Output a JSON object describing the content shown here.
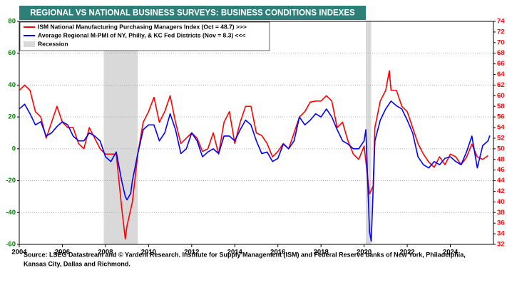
{
  "chart_data": {
    "type": "line",
    "title": "REGIONAL VS NATIONAL BUSINESS SURVEYS: BUSINESS CONDITIONS INDEXES",
    "xlim": [
      2004,
      2026
    ],
    "xticks": [
      2004,
      2006,
      2008,
      2010,
      2012,
      2014,
      2016,
      2018,
      2020,
      2022,
      2024
    ],
    "ylim": [
      -60,
      80
    ],
    "yticks": [
      -60,
      -40,
      -20,
      0,
      20,
      40,
      60,
      80
    ],
    "y2lim": [
      32,
      74
    ],
    "y2ticks": [
      32,
      34,
      36,
      38,
      40,
      42,
      44,
      46,
      48,
      50,
      52,
      54,
      56,
      58,
      60,
      62,
      64,
      66,
      68,
      70,
      72,
      74
    ],
    "grid": true,
    "legend": "top-left",
    "series": [
      {
        "name": "ISM National Manufacturing Purchasing Managers Index (Oct = 48.7) >>>",
        "color": "#ff0000",
        "axis": "y2",
        "x": [
          2004,
          2004.25,
          2004.5,
          2004.75,
          2005,
          2005.25,
          2005.5,
          2005.75,
          2006,
          2006.25,
          2006.5,
          2006.75,
          2007,
          2007.25,
          2007.5,
          2007.75,
          2008,
          2008.25,
          2008.5,
          2008.75,
          2008.92,
          2009,
          2009.25,
          2009.5,
          2009.75,
          2010,
          2010.25,
          2010.5,
          2010.75,
          2011,
          2011.25,
          2011.5,
          2011.75,
          2012,
          2012.25,
          2012.5,
          2012.75,
          2013,
          2013.25,
          2013.5,
          2013.75,
          2014,
          2014.25,
          2014.5,
          2014.75,
          2015,
          2015.25,
          2015.5,
          2015.75,
          2016,
          2016.25,
          2016.5,
          2016.75,
          2017,
          2017.25,
          2017.5,
          2017.75,
          2018,
          2018.25,
          2018.5,
          2018.75,
          2019,
          2019.25,
          2019.5,
          2019.75,
          2020,
          2020.25,
          2020.42,
          2020.5,
          2020.75,
          2021,
          2021.17,
          2021.25,
          2021.5,
          2021.75,
          2022,
          2022.25,
          2022.5,
          2022.75,
          2023,
          2023.25,
          2023.5,
          2023.75,
          2024,
          2024.25,
          2024.5,
          2024.75,
          2025,
          2025.25,
          2025.5,
          2025.75
        ],
        "values": [
          61,
          62,
          61,
          57,
          56,
          52,
          55,
          58,
          55,
          54,
          54,
          51,
          50,
          54,
          52,
          50,
          49,
          49,
          49,
          39,
          33,
          35.5,
          40,
          49,
          55,
          57,
          59.7,
          55,
          57,
          60,
          55,
          51,
          52,
          53,
          52,
          49.5,
          50,
          53,
          49,
          55,
          57,
          51,
          55,
          58,
          58,
          53,
          52.5,
          51,
          48.5,
          49.5,
          51,
          50,
          53,
          56,
          57,
          58.8,
          59,
          59,
          60,
          59,
          54,
          55,
          51.5,
          49,
          48,
          50.5,
          41.5,
          43,
          54,
          59,
          61,
          64.7,
          61,
          61,
          58,
          57,
          54,
          51,
          49,
          47.5,
          46.5,
          48.5,
          47,
          49,
          48.5,
          47,
          48.4,
          50.9,
          48.5,
          48,
          48.7
        ]
      },
      {
        "name": "Average Regional M-PMI of NY, Philly, & KC Fed Districts (Nov = 8.3) <<<",
        "color": "#0000ff",
        "axis": "y",
        "x": [
          2004,
          2004.25,
          2004.5,
          2004.75,
          2005,
          2005.25,
          2005.5,
          2005.75,
          2006,
          2006.25,
          2006.5,
          2006.75,
          2007,
          2007.25,
          2007.5,
          2007.75,
          2008,
          2008.25,
          2008.5,
          2008.75,
          2008.92,
          2009,
          2009.17,
          2009.25,
          2009.5,
          2009.75,
          2010,
          2010.25,
          2010.5,
          2010.75,
          2011,
          2011.25,
          2011.5,
          2011.75,
          2012,
          2012.25,
          2012.5,
          2012.75,
          2013,
          2013.25,
          2013.5,
          2013.75,
          2014,
          2014.25,
          2014.5,
          2014.75,
          2015,
          2015.25,
          2015.5,
          2015.75,
          2016,
          2016.25,
          2016.5,
          2016.75,
          2017,
          2017.25,
          2017.5,
          2017.75,
          2018,
          2018.25,
          2018.5,
          2018.75,
          2019,
          2019.25,
          2019.5,
          2019.75,
          2020,
          2020.08,
          2020.25,
          2020.33,
          2020.5,
          2020.75,
          2021,
          2021.25,
          2021.5,
          2021.75,
          2022,
          2022.25,
          2022.5,
          2022.75,
          2023,
          2023.25,
          2023.5,
          2023.75,
          2024,
          2024.25,
          2024.5,
          2024.75,
          2025,
          2025.25,
          2025.5,
          2025.75,
          2025.83
        ],
        "values": [
          25,
          28,
          22,
          15,
          17,
          8,
          10,
          14,
          17,
          15,
          8,
          5,
          5,
          10,
          8,
          5,
          -5,
          -8,
          -2,
          -20,
          -30,
          -32,
          -28,
          -20,
          -3,
          12,
          15,
          15,
          5,
          10,
          22,
          12,
          -3,
          0,
          10,
          5,
          -5,
          -2,
          0,
          -3,
          8,
          8,
          5,
          12,
          18,
          15,
          5,
          -3,
          -2,
          -8,
          -6,
          3,
          0,
          5,
          20,
          15,
          18,
          22,
          20,
          25,
          20,
          12,
          5,
          3,
          0,
          0,
          5,
          12,
          -52,
          -58,
          5,
          18,
          25,
          30,
          27,
          25,
          18,
          10,
          -5,
          -10,
          -12,
          -8,
          -10,
          -6,
          -5,
          -8,
          -10,
          -2,
          8,
          -12,
          2,
          5,
          8.3
        ]
      }
    ],
    "recession": {
      "name": "Recession",
      "color": "#d9d9d9",
      "periods": [
        [
          2007.92,
          2009.5
        ],
        [
          2020.08,
          2020.33
        ]
      ]
    },
    "source": [
      "Source: LSEG Datastream and © Yardeni Research. Institute for Supply Management (ISM) and Federal Reserve banks of New York, Philadelphia,",
      "Kansas City, Dallas and Richmond."
    ]
  }
}
